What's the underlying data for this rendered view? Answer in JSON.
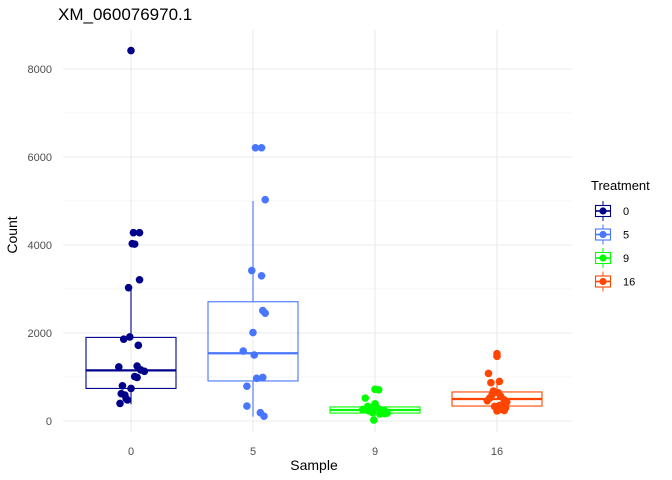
{
  "chart_data": {
    "type": "boxplot",
    "title": "XM_060076970.1",
    "xlabel": "Sample",
    "ylabel": "Count",
    "ylim": [
      -200,
      8600
    ],
    "yticks": [
      0,
      2000,
      4000,
      6000,
      8000
    ],
    "categories": [
      "0",
      "5",
      "9",
      "16"
    ],
    "legend": {
      "title": "Treatment",
      "position": "right",
      "entries": [
        "0",
        "5",
        "9",
        "16"
      ]
    },
    "colors": [
      "#00008B",
      "#4876FF",
      "#00FF00",
      "#FF4500"
    ],
    "grid": true,
    "groups": [
      {
        "name": "0",
        "box": {
          "whisker_low": 380,
          "q1": 740,
          "median": 1150,
          "q3": 1900,
          "whisker_high": 3000
        },
        "points": [
          {
            "off": 0.0,
            "v": 8420
          },
          {
            "off": 0.02,
            "v": 4280
          },
          {
            "off": 0.07,
            "v": 4280
          },
          {
            "off": 0.01,
            "v": 4030
          },
          {
            "off": 0.03,
            "v": 4020
          },
          {
            "off": 0.07,
            "v": 3210
          },
          {
            "off": -0.02,
            "v": 3030
          },
          {
            "off": -0.06,
            "v": 1860
          },
          {
            "off": -0.01,
            "v": 1910
          },
          {
            "off": 0.06,
            "v": 1720
          },
          {
            "off": -0.1,
            "v": 1230
          },
          {
            "off": 0.05,
            "v": 1250
          },
          {
            "off": 0.08,
            "v": 1160
          },
          {
            "off": 0.11,
            "v": 1130
          },
          {
            "off": 0.03,
            "v": 1010
          },
          {
            "off": 0.05,
            "v": 990
          },
          {
            "off": -0.07,
            "v": 800
          },
          {
            "off": 0.0,
            "v": 740
          },
          {
            "off": -0.08,
            "v": 620
          },
          {
            "off": -0.05,
            "v": 590
          },
          {
            "off": -0.04,
            "v": 510
          },
          {
            "off": -0.03,
            "v": 480
          },
          {
            "off": -0.09,
            "v": 400
          }
        ]
      },
      {
        "name": "5",
        "box": {
          "whisker_low": 100,
          "q1": 910,
          "median": 1540,
          "q3": 2710,
          "whisker_high": 5000
        },
        "points": [
          {
            "off": 0.02,
            "v": 6210
          },
          {
            "off": 0.07,
            "v": 6210
          },
          {
            "off": 0.1,
            "v": 5030
          },
          {
            "off": -0.01,
            "v": 3420
          },
          {
            "off": 0.07,
            "v": 3300
          },
          {
            "off": 0.08,
            "v": 2510
          },
          {
            "off": 0.1,
            "v": 2450
          },
          {
            "off": 0.0,
            "v": 2010
          },
          {
            "off": -0.08,
            "v": 1590
          },
          {
            "off": 0.01,
            "v": 1500
          },
          {
            "off": 0.08,
            "v": 990
          },
          {
            "off": 0.03,
            "v": 970
          },
          {
            "off": -0.05,
            "v": 790
          },
          {
            "off": -0.05,
            "v": 340
          },
          {
            "off": 0.06,
            "v": 190
          },
          {
            "off": 0.09,
            "v": 110
          }
        ]
      },
      {
        "name": "9",
        "box": {
          "whisker_low": 40,
          "q1": 180,
          "median": 250,
          "q3": 320,
          "whisker_high": 420
        },
        "points": [
          {
            "off": 0.0,
            "v": 720
          },
          {
            "off": 0.03,
            "v": 710
          },
          {
            "off": -0.08,
            "v": 520
          },
          {
            "off": -0.06,
            "v": 330
          },
          {
            "off": -0.03,
            "v": 310
          },
          {
            "off": 0.0,
            "v": 390
          },
          {
            "off": 0.02,
            "v": 290
          },
          {
            "off": 0.05,
            "v": 250
          },
          {
            "off": 0.08,
            "v": 230
          },
          {
            "off": -0.1,
            "v": 260
          },
          {
            "off": -0.05,
            "v": 230
          },
          {
            "off": 0.1,
            "v": 180
          },
          {
            "off": 0.06,
            "v": 200
          },
          {
            "off": 0.04,
            "v": 160
          },
          {
            "off": -0.02,
            "v": 190
          },
          {
            "off": -0.01,
            "v": 20
          },
          {
            "off": 0.08,
            "v": 170
          }
        ]
      },
      {
        "name": "16",
        "box": {
          "whisker_low": 220,
          "q1": 340,
          "median": 500,
          "q3": 660,
          "whisker_high": 870
        },
        "points": [
          {
            "off": 0.0,
            "v": 1530
          },
          {
            "off": 0.0,
            "v": 1470
          },
          {
            "off": -0.07,
            "v": 1080
          },
          {
            "off": -0.05,
            "v": 870
          },
          {
            "off": 0.02,
            "v": 900
          },
          {
            "off": -0.03,
            "v": 680
          },
          {
            "off": 0.01,
            "v": 640
          },
          {
            "off": 0.03,
            "v": 560
          },
          {
            "off": -0.04,
            "v": 600
          },
          {
            "off": -0.06,
            "v": 520
          },
          {
            "off": -0.08,
            "v": 460
          },
          {
            "off": 0.06,
            "v": 480
          },
          {
            "off": 0.08,
            "v": 430
          },
          {
            "off": 0.05,
            "v": 380
          },
          {
            "off": 0.02,
            "v": 350
          },
          {
            "off": -0.02,
            "v": 330
          },
          {
            "off": 0.07,
            "v": 300
          },
          {
            "off": 0.04,
            "v": 260
          },
          {
            "off": 0.0,
            "v": 230
          },
          {
            "off": 0.06,
            "v": 240
          }
        ]
      }
    ]
  }
}
